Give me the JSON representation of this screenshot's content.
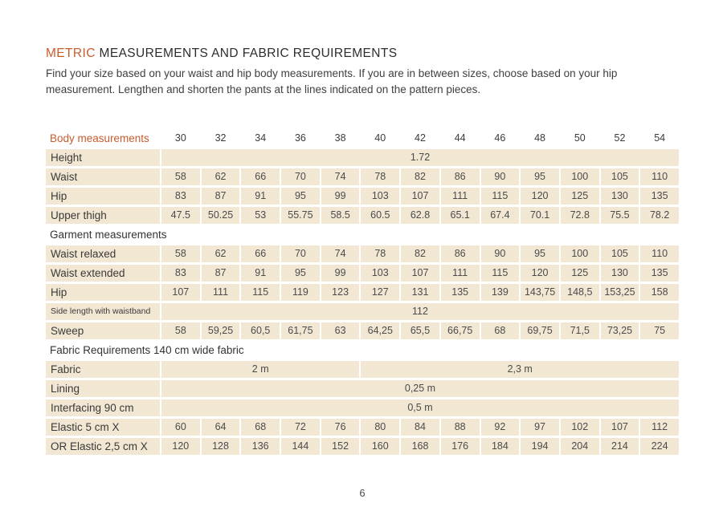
{
  "page": {
    "title_highlight": "METRIC",
    "title_rest": " MEASUREMENTS AND FABRIC REQUIREMENTS",
    "subtitle": "Find your size based on your waist and hip body measurements. If you are in between sizes, choose based on your hip measurement. Lengthen and shorten the pants at the lines indicated on the pattern pieces.",
    "page_number": "6"
  },
  "colors": {
    "accent": "#c75b2e",
    "cell_background": "#f2e7d3",
    "text": "#3d3d3d"
  },
  "table": {
    "header_label": "Body measurements",
    "sizes": [
      "30",
      "32",
      "34",
      "36",
      "38",
      "40",
      "42",
      "44",
      "46",
      "48",
      "50",
      "52",
      "54"
    ],
    "rows": [
      {
        "type": "merged",
        "label": "Height",
        "merged": [
          {
            "cols": 13,
            "value": "1.72"
          }
        ]
      },
      {
        "type": "values",
        "label": "Waist",
        "values": [
          "58",
          "62",
          "66",
          "70",
          "74",
          "78",
          "82",
          "86",
          "90",
          "95",
          "100",
          "105",
          "110"
        ]
      },
      {
        "type": "values",
        "label": "Hip",
        "values": [
          "83",
          "87",
          "91",
          "95",
          "99",
          "103",
          "107",
          "111",
          "115",
          "120",
          "125",
          "130",
          "135"
        ]
      },
      {
        "type": "values",
        "label": "Upper thigh",
        "values": [
          "47.5",
          "50.25",
          "53",
          "55.75",
          "58.5",
          "60.5",
          "62.8",
          "65.1",
          "67.4",
          "70.1",
          "72.8",
          "75.5",
          "78.2"
        ]
      },
      {
        "type": "section",
        "label": "Garment measurements"
      },
      {
        "type": "values",
        "label": "Waist relaxed",
        "values": [
          "58",
          "62",
          "66",
          "70",
          "74",
          "78",
          "82",
          "86",
          "90",
          "95",
          "100",
          "105",
          "110"
        ]
      },
      {
        "type": "values",
        "label": "Waist extended",
        "values": [
          "83",
          "87",
          "91",
          "95",
          "99",
          "103",
          "107",
          "111",
          "115",
          "120",
          "125",
          "130",
          "135"
        ]
      },
      {
        "type": "values",
        "label": "Hip",
        "values": [
          "107",
          "111",
          "115",
          "119",
          "123",
          "127",
          "131",
          "135",
          "139",
          "143,75",
          "148,5",
          "153,25",
          "158"
        ]
      },
      {
        "type": "merged",
        "label": "Side length with waistband",
        "small_label": true,
        "merged": [
          {
            "cols": 13,
            "value": "112"
          }
        ]
      },
      {
        "type": "values",
        "label": "Sweep",
        "values": [
          "58",
          "59,25",
          "60,5",
          "61,75",
          "63",
          "64,25",
          "65,5",
          "66,75",
          "68",
          "69,75",
          "71,5",
          "73,25",
          "75"
        ]
      },
      {
        "type": "section",
        "label": "Fabric Requirements 140 cm wide fabric"
      },
      {
        "type": "merged",
        "label": "Fabric",
        "merged": [
          {
            "cols": 5,
            "value": "2 m"
          },
          {
            "cols": 8,
            "value": "2,3 m"
          }
        ]
      },
      {
        "type": "merged",
        "label": "Lining",
        "merged": [
          {
            "cols": 13,
            "value": "0,25 m"
          }
        ]
      },
      {
        "type": "merged",
        "label": "Interfacing 90 cm",
        "merged": [
          {
            "cols": 13,
            "value": "0,5 m"
          }
        ]
      },
      {
        "type": "values",
        "label": "Elastic 5 cm X",
        "values": [
          "60",
          "64",
          "68",
          "72",
          "76",
          "80",
          "84",
          "88",
          "92",
          "97",
          "102",
          "107",
          "112"
        ]
      },
      {
        "type": "values",
        "label": "OR Elastic 2,5 cm X",
        "values": [
          "120",
          "128",
          "136",
          "144",
          "152",
          "160",
          "168",
          "176",
          "184",
          "194",
          "204",
          "214",
          "224"
        ]
      }
    ]
  }
}
